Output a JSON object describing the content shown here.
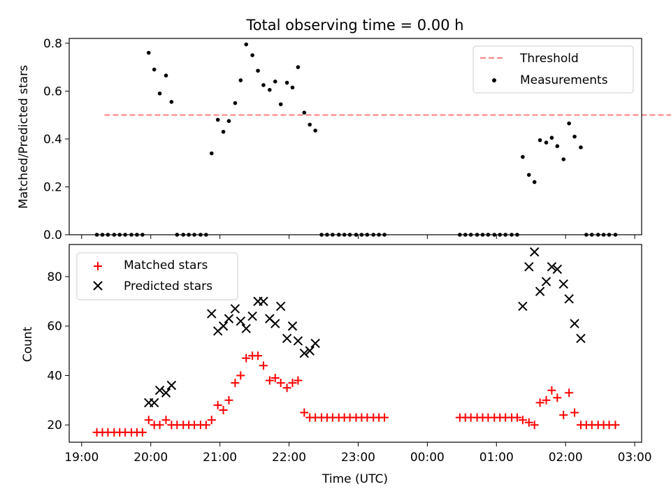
{
  "chart_data": [
    {
      "type": "scatter",
      "title": "Total observing time = 0.00 h",
      "xlabel": "",
      "ylabel": "Matched/Predicted stars",
      "ylim": [
        0,
        0.82
      ],
      "yticks": [
        0,
        0.2,
        0.4,
        0.6,
        0.8
      ],
      "ytick_labels": [
        "0.0",
        "0.2",
        "0.4",
        "0.6",
        "0.8"
      ],
      "grid": false,
      "legend_position": "top-right",
      "threshold": {
        "name": "Threshold",
        "value": 0.5,
        "color": "#ff7f7f",
        "x_range": [
          19.33,
          27.66
        ]
      },
      "series": [
        {
          "name": "Measurements",
          "color": "#000000",
          "points": [
            [
              19.22,
              0
            ],
            [
              19.3,
              0
            ],
            [
              19.38,
              0
            ],
            [
              19.47,
              0
            ],
            [
              19.55,
              0
            ],
            [
              19.63,
              0
            ],
            [
              19.72,
              0
            ],
            [
              19.8,
              0
            ],
            [
              19.88,
              0
            ],
            [
              19.97,
              0.76
            ],
            [
              20.05,
              0.69
            ],
            [
              20.13,
              0.59
            ],
            [
              20.22,
              0.665
            ],
            [
              20.3,
              0.555
            ],
            [
              20.38,
              0
            ],
            [
              20.47,
              0
            ],
            [
              20.55,
              0
            ],
            [
              20.63,
              0
            ],
            [
              20.72,
              0
            ],
            [
              20.8,
              0
            ],
            [
              20.88,
              0.34
            ],
            [
              20.97,
              0.48
            ],
            [
              21.05,
              0.43
            ],
            [
              21.13,
              0.475
            ],
            [
              21.22,
              0.55
            ],
            [
              21.3,
              0.645
            ],
            [
              21.38,
              0.795
            ],
            [
              21.47,
              0.75
            ],
            [
              21.55,
              0.685
            ],
            [
              21.63,
              0.625
            ],
            [
              21.72,
              0.605
            ],
            [
              21.8,
              0.64
            ],
            [
              21.88,
              0.545
            ],
            [
              21.97,
              0.635
            ],
            [
              22.05,
              0.615
            ],
            [
              22.13,
              0.7
            ],
            [
              22.22,
              0.51
            ],
            [
              22.3,
              0.46
            ],
            [
              22.38,
              0.435
            ],
            [
              22.47,
              0
            ],
            [
              22.55,
              0
            ],
            [
              22.63,
              0
            ],
            [
              22.72,
              0
            ],
            [
              22.8,
              0
            ],
            [
              22.88,
              0
            ],
            [
              22.97,
              0
            ],
            [
              23.05,
              0
            ],
            [
              23.13,
              0
            ],
            [
              23.22,
              0
            ],
            [
              23.3,
              0
            ],
            [
              23.38,
              0
            ],
            [
              24.47,
              0
            ],
            [
              24.55,
              0
            ],
            [
              24.63,
              0
            ],
            [
              24.72,
              0
            ],
            [
              24.8,
              0
            ],
            [
              24.88,
              0
            ],
            [
              24.97,
              0
            ],
            [
              25.05,
              0
            ],
            [
              25.13,
              0
            ],
            [
              25.22,
              0
            ],
            [
              25.3,
              0
            ],
            [
              25.38,
              0.325
            ],
            [
              25.47,
              0.25
            ],
            [
              25.55,
              0.22
            ],
            [
              25.63,
              0.395
            ],
            [
              25.72,
              0.385
            ],
            [
              25.8,
              0.405
            ],
            [
              25.88,
              0.37
            ],
            [
              25.97,
              0.315
            ],
            [
              26.05,
              0.465
            ],
            [
              26.13,
              0.41
            ],
            [
              26.22,
              0.365
            ],
            [
              26.3,
              0
            ],
            [
              26.38,
              0
            ],
            [
              26.47,
              0
            ],
            [
              26.55,
              0
            ],
            [
              26.63,
              0
            ],
            [
              26.72,
              0
            ]
          ]
        }
      ]
    },
    {
      "type": "scatter",
      "title": "",
      "xlabel": "Time (UTC)",
      "ylabel": "Count",
      "ylim": [
        13,
        93
      ],
      "yticks": [
        20,
        40,
        60,
        80
      ],
      "ytick_labels": [
        "20",
        "40",
        "60",
        "80"
      ],
      "xticks": [
        19,
        20,
        21,
        22,
        23,
        24,
        25,
        26,
        27
      ],
      "xtick_labels": [
        "19:00",
        "20:00",
        "21:00",
        "22:00",
        "23:00",
        "00:00",
        "01:00",
        "02:00",
        "03:00"
      ],
      "xlim": [
        18.82,
        27.1
      ],
      "grid": false,
      "legend_position": "top-left",
      "series": [
        {
          "name": "Matched stars",
          "marker": "plus",
          "color": "#ff0000",
          "points": [
            [
              19.22,
              17
            ],
            [
              19.3,
              17
            ],
            [
              19.38,
              17
            ],
            [
              19.47,
              17
            ],
            [
              19.55,
              17
            ],
            [
              19.63,
              17
            ],
            [
              19.72,
              17
            ],
            [
              19.8,
              17
            ],
            [
              19.88,
              17
            ],
            [
              19.97,
              22
            ],
            [
              20.05,
              20
            ],
            [
              20.13,
              20
            ],
            [
              20.22,
              22
            ],
            [
              20.3,
              20
            ],
            [
              20.38,
              20
            ],
            [
              20.47,
              20
            ],
            [
              20.55,
              20
            ],
            [
              20.63,
              20
            ],
            [
              20.72,
              20
            ],
            [
              20.8,
              20
            ],
            [
              20.88,
              22
            ],
            [
              20.97,
              28
            ],
            [
              21.05,
              26
            ],
            [
              21.13,
              30
            ],
            [
              21.22,
              37
            ],
            [
              21.3,
              40
            ],
            [
              21.38,
              47
            ],
            [
              21.47,
              48
            ],
            [
              21.55,
              48
            ],
            [
              21.63,
              44
            ],
            [
              21.72,
              38
            ],
            [
              21.8,
              39
            ],
            [
              21.88,
              37
            ],
            [
              21.97,
              35
            ],
            [
              22.05,
              37
            ],
            [
              22.13,
              38
            ],
            [
              22.22,
              25
            ],
            [
              22.3,
              23
            ],
            [
              22.38,
              23
            ],
            [
              22.47,
              23
            ],
            [
              22.55,
              23
            ],
            [
              22.63,
              23
            ],
            [
              22.72,
              23
            ],
            [
              22.8,
              23
            ],
            [
              22.88,
              23
            ],
            [
              22.97,
              23
            ],
            [
              23.05,
              23
            ],
            [
              23.13,
              23
            ],
            [
              23.22,
              23
            ],
            [
              23.3,
              23
            ],
            [
              23.38,
              23
            ],
            [
              24.47,
              23
            ],
            [
              24.55,
              23
            ],
            [
              24.63,
              23
            ],
            [
              24.72,
              23
            ],
            [
              24.8,
              23
            ],
            [
              24.88,
              23
            ],
            [
              24.97,
              23
            ],
            [
              25.05,
              23
            ],
            [
              25.13,
              23
            ],
            [
              25.22,
              23
            ],
            [
              25.3,
              23
            ],
            [
              25.38,
              22
            ],
            [
              25.47,
              21
            ],
            [
              25.55,
              20
            ],
            [
              25.63,
              29
            ],
            [
              25.72,
              30
            ],
            [
              25.8,
              34
            ],
            [
              25.88,
              31
            ],
            [
              25.97,
              24
            ],
            [
              26.05,
              33
            ],
            [
              26.13,
              25
            ],
            [
              26.22,
              20
            ],
            [
              26.3,
              20
            ],
            [
              26.38,
              20
            ],
            [
              26.47,
              20
            ],
            [
              26.55,
              20
            ],
            [
              26.63,
              20
            ],
            [
              26.72,
              20
            ]
          ]
        },
        {
          "name": "Predicted stars",
          "marker": "x",
          "color": "#000000",
          "points": [
            [
              19.97,
              29
            ],
            [
              20.05,
              29
            ],
            [
              20.13,
              34
            ],
            [
              20.22,
              33
            ],
            [
              20.3,
              36
            ],
            [
              20.88,
              65
            ],
            [
              20.97,
              58
            ],
            [
              21.05,
              60
            ],
            [
              21.13,
              63
            ],
            [
              21.22,
              67
            ],
            [
              21.3,
              62
            ],
            [
              21.38,
              59
            ],
            [
              21.47,
              64
            ],
            [
              21.55,
              70
            ],
            [
              21.63,
              70
            ],
            [
              21.72,
              63
            ],
            [
              21.8,
              61
            ],
            [
              21.88,
              68
            ],
            [
              21.97,
              55
            ],
            [
              22.05,
              60
            ],
            [
              22.13,
              54
            ],
            [
              22.22,
              49
            ],
            [
              22.3,
              50
            ],
            [
              22.38,
              53
            ],
            [
              25.38,
              68
            ],
            [
              25.47,
              84
            ],
            [
              25.55,
              90
            ],
            [
              25.63,
              74
            ],
            [
              25.72,
              78
            ],
            [
              25.8,
              84
            ],
            [
              25.88,
              83
            ],
            [
              25.97,
              77
            ],
            [
              26.05,
              71
            ],
            [
              26.13,
              61
            ],
            [
              26.22,
              55
            ]
          ]
        }
      ]
    }
  ]
}
